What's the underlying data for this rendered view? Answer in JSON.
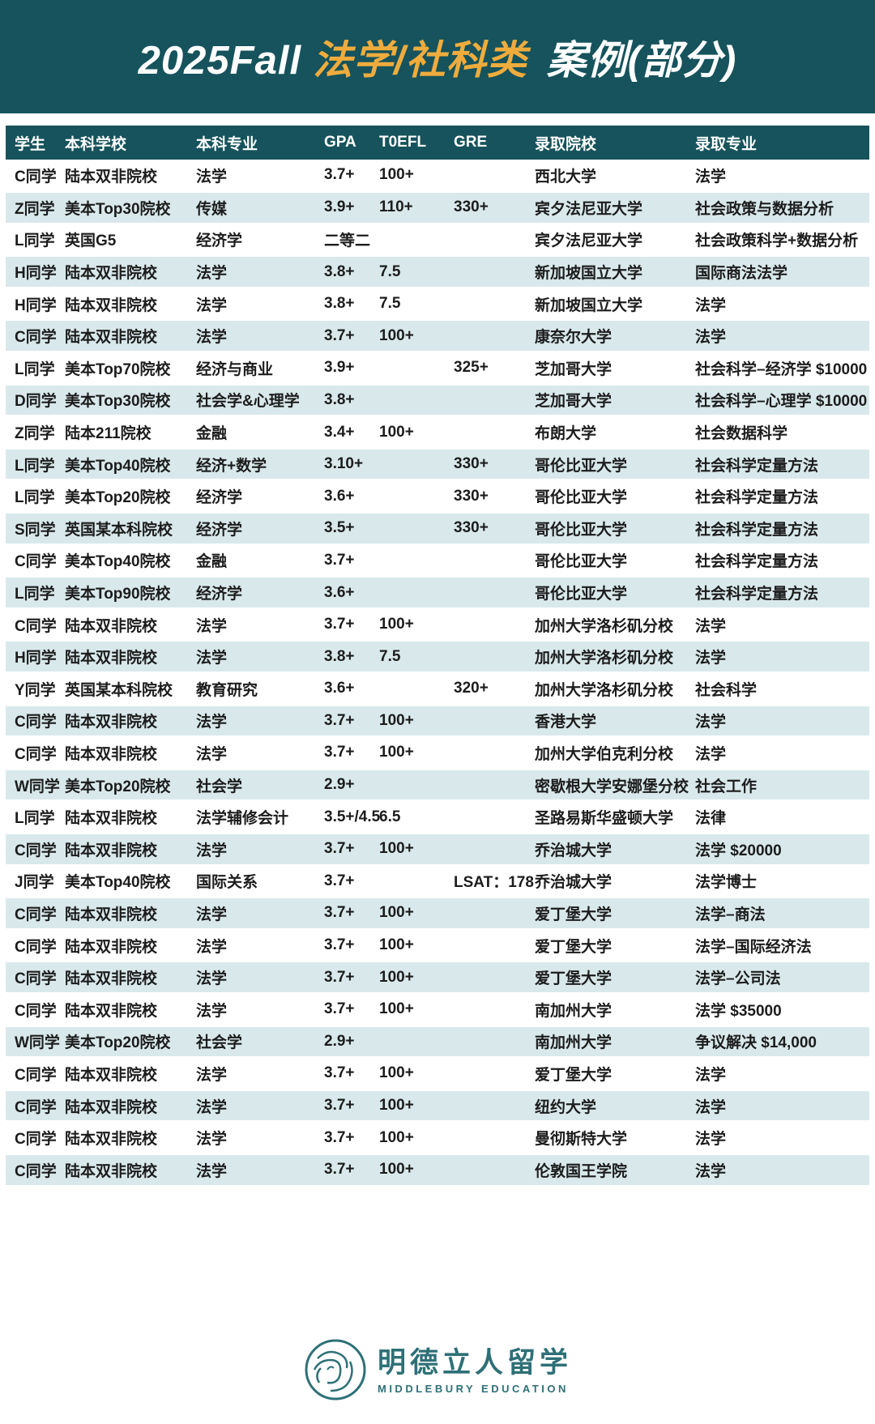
{
  "title": {
    "prefix": "2025Fall",
    "highlight": "法学/社科类",
    "suffix": "案例(部分)"
  },
  "colors": {
    "banner_teal": "#16535c",
    "highlight_gold": "#efac3d",
    "row_alt_blue": "#d9e9eb",
    "brand_teal": "#2e7077"
  },
  "table": {
    "headers": [
      "学生",
      "本科学校",
      "本科专业",
      "GPA",
      "T0EFL",
      "GRE",
      "录取院校",
      "录取专业"
    ],
    "header_keys": [
      "student",
      "undergrad-school",
      "undergrad-major",
      "gpa",
      "toefl",
      "gre",
      "admit-school",
      "admit-major"
    ],
    "rows": [
      [
        "C同学",
        "陆本双非院校",
        "法学",
        "3.7+",
        "100+",
        "",
        "西北大学",
        "法学"
      ],
      [
        "Z同学",
        "美本Top30院校",
        "传媒",
        "3.9+",
        "110+",
        "330+",
        "宾夕法尼亚大学",
        "社会政策与数据分析"
      ],
      [
        "L同学",
        "英国G5",
        "经济学",
        "二等二",
        "",
        "",
        "宾夕法尼亚大学",
        "社会政策科学+数据分析"
      ],
      [
        "H同学",
        "陆本双非院校",
        "法学",
        "3.8+",
        "7.5",
        "",
        "新加坡国立大学",
        "国际商法法学"
      ],
      [
        "H同学",
        "陆本双非院校",
        "法学",
        "3.8+",
        "7.5",
        "",
        "新加坡国立大学",
        "法学"
      ],
      [
        "C同学",
        "陆本双非院校",
        "法学",
        "3.7+",
        "100+",
        "",
        "康奈尔大学",
        "法学"
      ],
      [
        "L同学",
        "美本Top70院校",
        "经济与商业",
        "3.9+",
        "",
        "325+",
        "芝加哥大学",
        "社会科学–经济学 $10000"
      ],
      [
        "D同学",
        "美本Top30院校",
        "社会学&心理学",
        "3.8+",
        "",
        "",
        "芝加哥大学",
        "社会科学–心理学 $10000"
      ],
      [
        "Z同学",
        "陆本211院校",
        "金融",
        "3.4+",
        "100+",
        "",
        "布朗大学",
        "社会数据科学"
      ],
      [
        "L同学",
        "美本Top40院校",
        "经济+数学",
        "3.10+",
        "",
        "330+",
        "哥伦比亚大学",
        "社会科学定量方法"
      ],
      [
        "L同学",
        "美本Top20院校",
        "经济学",
        "3.6+",
        "",
        "330+",
        "哥伦比亚大学",
        "社会科学定量方法"
      ],
      [
        "S同学",
        "英国某本科院校",
        "经济学",
        "3.5+",
        "",
        "330+",
        "哥伦比亚大学",
        "社会科学定量方法"
      ],
      [
        "C同学",
        "美本Top40院校",
        "金融",
        "3.7+",
        "",
        "",
        "哥伦比亚大学",
        "社会科学定量方法"
      ],
      [
        "L同学",
        "美本Top90院校",
        "经济学",
        "3.6+",
        "",
        "",
        "哥伦比亚大学",
        "社会科学定量方法"
      ],
      [
        "C同学",
        "陆本双非院校",
        "法学",
        "3.7+",
        "100+",
        "",
        "加州大学洛杉矶分校",
        "法学"
      ],
      [
        "H同学",
        "陆本双非院校",
        "法学",
        "3.8+",
        "7.5",
        "",
        "加州大学洛杉矶分校",
        "法学"
      ],
      [
        "Y同学",
        "英国某本科院校",
        "教育研究",
        "3.6+",
        "",
        "320+",
        "加州大学洛杉矶分校",
        "社会科学"
      ],
      [
        "C同学",
        "陆本双非院校",
        "法学",
        "3.7+",
        "100+",
        "",
        "香港大学",
        "法学"
      ],
      [
        "C同学",
        "陆本双非院校",
        "法学",
        "3.7+",
        "100+",
        "",
        "加州大学伯克利分校",
        "法学"
      ],
      [
        "W同学",
        "美本Top20院校",
        "社会学",
        "2.9+",
        "",
        "",
        "密歇根大学安娜堡分校",
        "社会工作"
      ],
      [
        "L同学",
        "陆本双非院校",
        "法学辅修会计",
        "3.5+/4.5",
        "6.5",
        "",
        "圣路易斯华盛顿大学",
        "法律"
      ],
      [
        "C同学",
        "陆本双非院校",
        "法学",
        "3.7+",
        "100+",
        "",
        "乔治城大学",
        "法学 $20000"
      ],
      [
        "J同学",
        "美本Top40院校",
        "国际关系",
        "3.7+",
        "",
        "LSAT：178",
        "乔治城大学",
        "法学博士"
      ],
      [
        "C同学",
        "陆本双非院校",
        "法学",
        "3.7+",
        "100+",
        "",
        "爱丁堡大学",
        "法学–商法"
      ],
      [
        "C同学",
        "陆本双非院校",
        "法学",
        "3.7+",
        "100+",
        "",
        "爱丁堡大学",
        "法学–国际经济法"
      ],
      [
        "C同学",
        "陆本双非院校",
        "法学",
        "3.7+",
        "100+",
        "",
        "爱丁堡大学",
        "法学–公司法"
      ],
      [
        "C同学",
        "陆本双非院校",
        "法学",
        "3.7+",
        "100+",
        "",
        "南加州大学",
        "法学 $35000"
      ],
      [
        "W同学",
        "美本Top20院校",
        "社会学",
        "2.9+",
        "",
        "",
        "南加州大学",
        "争议解决 $14,000"
      ],
      [
        "C同学",
        "陆本双非院校",
        "法学",
        "3.7+",
        "100+",
        "",
        "爱丁堡大学",
        "法学"
      ],
      [
        "C同学",
        "陆本双非院校",
        "法学",
        "3.7+",
        "100+",
        "",
        "纽约大学",
        "法学"
      ],
      [
        "C同学",
        "陆本双非院校",
        "法学",
        "3.7+",
        "100+",
        "",
        "曼彻斯特大学",
        "法学"
      ],
      [
        "C同学",
        "陆本双非院校",
        "法学",
        "3.7+",
        "100+",
        "",
        "伦敦国王学院",
        "法学"
      ]
    ]
  },
  "footer": {
    "brand_cn": "明德立人留学",
    "brand_en": "MIDDLEBURY EDUCATION"
  }
}
